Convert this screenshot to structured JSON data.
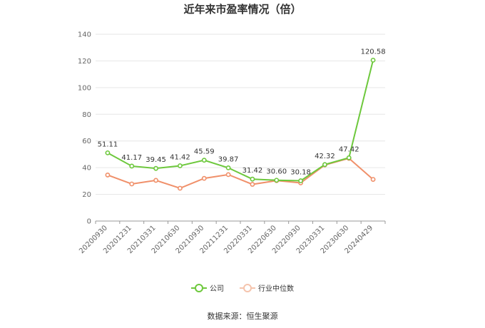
{
  "chart_data": {
    "type": "line",
    "title": "近年来市盈率情况（倍）",
    "categories": [
      "20200930",
      "20201231",
      "20210331",
      "20210630",
      "20210930",
      "20211231",
      "20220331",
      "20220630",
      "20220930",
      "20230331",
      "20230630",
      "20240429"
    ],
    "series": [
      {
        "name": "公司",
        "color": "#6dc83c",
        "values": [
          51.11,
          41.17,
          39.45,
          41.42,
          45.59,
          39.87,
          31.42,
          30.6,
          30.18,
          42.32,
          47.42,
          120.58
        ],
        "labels": [
          "51.11",
          "41.17",
          "39.45",
          "41.42",
          "45.59",
          "39.87",
          "31.42",
          "30.60",
          "30.18",
          "42.32",
          "47.42",
          "120.58"
        ]
      },
      {
        "name": "行业中位数",
        "color": "#f0906a",
        "values": [
          34.5,
          27.8,
          30.5,
          24.6,
          32.0,
          34.8,
          27.5,
          30.3,
          28.6,
          42.0,
          47.0,
          31.2
        ]
      }
    ],
    "ylim": [
      0,
      140
    ],
    "yticks": [
      0,
      20,
      40,
      60,
      80,
      100,
      120,
      140
    ],
    "grid": true,
    "legend": "bottom"
  },
  "source": "数据来源：恒生聚源"
}
